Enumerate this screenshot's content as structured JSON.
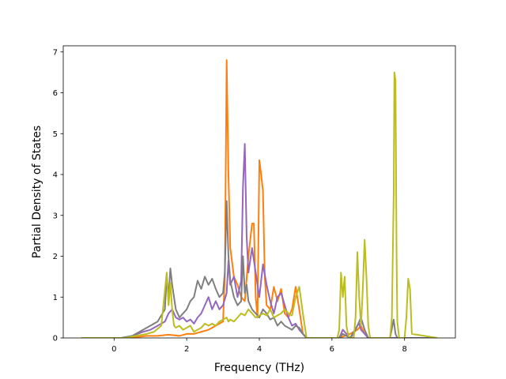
{
  "chart_data": {
    "type": "line",
    "title": "",
    "xlabel": "Frequency (THz)",
    "ylabel": "Partial Density of States",
    "xlim": [
      -1.4,
      9.4
    ],
    "ylim": [
      0,
      7.15
    ],
    "xticks": [
      0,
      2,
      4,
      6,
      8
    ],
    "yticks": [
      0,
      1,
      2,
      3,
      4,
      5,
      6,
      7
    ],
    "grid": false,
    "legend": "none",
    "series": [
      {
        "color": "#ff7f0e",
        "x": [
          -0.9,
          0.3,
          0.6,
          0.9,
          1.2,
          1.5,
          1.8,
          2.0,
          2.2,
          2.4,
          2.6,
          2.8,
          3.0,
          3.05,
          3.1,
          3.15,
          3.2,
          3.3,
          3.4,
          3.5,
          3.6,
          3.7,
          3.8,
          3.85,
          3.9,
          3.95,
          4.0,
          4.05,
          4.1,
          4.15,
          4.2,
          4.3,
          4.4,
          4.5,
          4.6,
          4.7,
          4.8,
          4.9,
          5.0,
          5.1,
          5.2,
          5.3,
          6.2,
          6.5,
          6.7,
          6.8,
          6.85,
          6.9,
          7.0,
          8.9
        ],
        "y": [
          0,
          0,
          0.02,
          0.05,
          0.05,
          0.08,
          0.05,
          0.1,
          0.1,
          0.15,
          0.2,
          0.3,
          0.4,
          1.5,
          6.8,
          4.0,
          2.2,
          1.5,
          1.3,
          1.0,
          0.9,
          2.0,
          2.8,
          2.8,
          1.0,
          0.5,
          4.35,
          4.0,
          3.6,
          1.5,
          0.8,
          0.7,
          1.25,
          0.9,
          1.2,
          0.6,
          0.5,
          0.7,
          1.25,
          0.7,
          0.1,
          0,
          0,
          0.1,
          0.2,
          0.3,
          0.2,
          0.1,
          0,
          0
        ]
      },
      {
        "color": "#9467bd",
        "x": [
          -0.9,
          0.2,
          0.5,
          0.8,
          1.0,
          1.2,
          1.4,
          1.5,
          1.6,
          1.7,
          1.8,
          1.9,
          2.0,
          2.1,
          2.2,
          2.3,
          2.4,
          2.5,
          2.6,
          2.7,
          2.8,
          2.9,
          3.0,
          3.1,
          3.15,
          3.2,
          3.3,
          3.4,
          3.5,
          3.55,
          3.6,
          3.65,
          3.7,
          3.8,
          3.9,
          4.0,
          4.1,
          4.2,
          4.3,
          4.4,
          4.5,
          4.6,
          4.7,
          4.8,
          4.9,
          5.0,
          5.1,
          5.2,
          5.3,
          6.2,
          6.3,
          6.4,
          6.5,
          6.6,
          6.7,
          6.75,
          6.8,
          6.9,
          7.0,
          8.9
        ],
        "y": [
          0,
          0,
          0.05,
          0.15,
          0.2,
          0.3,
          0.4,
          0.6,
          0.7,
          0.5,
          0.45,
          0.5,
          0.4,
          0.45,
          0.35,
          0.5,
          0.6,
          0.8,
          1.0,
          0.7,
          0.9,
          0.7,
          0.8,
          1.1,
          1.9,
          1.3,
          1.5,
          1.0,
          1.4,
          3.7,
          4.75,
          2.5,
          1.6,
          2.2,
          1.6,
          1.0,
          1.8,
          1.3,
          0.9,
          0.6,
          1.0,
          1.1,
          0.8,
          0.5,
          0.3,
          0.35,
          0.2,
          0.1,
          0,
          0,
          0.2,
          0.1,
          0,
          0.1,
          0.3,
          0.35,
          0.2,
          0.1,
          0,
          0
        ]
      },
      {
        "color": "#7f7f7f",
        "x": [
          -0.9,
          0.2,
          0.5,
          0.8,
          1.0,
          1.2,
          1.4,
          1.45,
          1.5,
          1.55,
          1.6,
          1.7,
          1.8,
          1.9,
          2.0,
          2.1,
          2.2,
          2.3,
          2.4,
          2.5,
          2.6,
          2.7,
          2.8,
          2.9,
          3.0,
          3.05,
          3.1,
          3.15,
          3.2,
          3.3,
          3.4,
          3.5,
          3.55,
          3.6,
          3.65,
          3.7,
          3.8,
          3.9,
          4.0,
          4.1,
          4.2,
          4.3,
          4.4,
          4.5,
          4.6,
          4.7,
          4.8,
          4.9,
          5.0,
          5.1,
          5.2,
          5.3,
          6.2,
          6.3,
          6.4,
          6.5,
          6.7,
          6.8,
          6.9,
          7.0,
          7.6,
          7.7,
          7.75,
          7.8,
          8.9
        ],
        "y": [
          0,
          0,
          0.05,
          0.2,
          0.3,
          0.4,
          0.7,
          1.5,
          1.0,
          1.7,
          1.3,
          0.7,
          0.5,
          0.6,
          0.7,
          0.9,
          1.0,
          1.4,
          1.2,
          1.5,
          1.3,
          1.45,
          1.2,
          1.0,
          1.1,
          1.6,
          3.35,
          2.0,
          1.4,
          1.0,
          0.8,
          0.9,
          2.0,
          1.1,
          1.3,
          0.9,
          0.7,
          0.6,
          0.5,
          0.7,
          0.6,
          0.45,
          0.5,
          0.3,
          0.4,
          0.3,
          0.25,
          0.2,
          0.3,
          0.25,
          0.1,
          0,
          0,
          0.1,
          0.05,
          0,
          0.3,
          0.5,
          0.2,
          0,
          0,
          0.45,
          0.1,
          0,
          0
        ]
      },
      {
        "color": "#bcbd22",
        "x": [
          -0.9,
          0.3,
          0.6,
          0.9,
          1.1,
          1.3,
          1.45,
          1.5,
          1.55,
          1.6,
          1.65,
          1.7,
          1.8,
          1.9,
          2.0,
          2.1,
          2.2,
          2.3,
          2.4,
          2.5,
          2.6,
          2.7,
          2.8,
          2.9,
          3.0,
          3.1,
          3.15,
          3.2,
          3.3,
          3.4,
          3.5,
          3.6,
          3.7,
          3.8,
          3.9,
          4.0,
          4.1,
          4.2,
          4.3,
          4.4,
          4.5,
          4.6,
          4.7,
          4.8,
          4.9,
          5.0,
          5.1,
          5.2,
          5.3,
          6.15,
          6.2,
          6.25,
          6.3,
          6.35,
          6.4,
          6.45,
          6.5,
          6.6,
          6.65,
          6.7,
          6.75,
          6.8,
          6.85,
          6.9,
          6.95,
          7.0,
          7.05,
          7.6,
          7.65,
          7.7,
          7.72,
          7.75,
          7.78,
          7.8,
          7.85,
          8.0,
          8.05,
          8.1,
          8.15,
          8.2,
          8.9
        ],
        "y": [
          0,
          0,
          0.05,
          0.1,
          0.15,
          0.3,
          1.6,
          0.8,
          1.35,
          0.7,
          0.3,
          0.25,
          0.3,
          0.2,
          0.25,
          0.3,
          0.15,
          0.2,
          0.25,
          0.35,
          0.3,
          0.35,
          0.3,
          0.4,
          0.45,
          0.5,
          0.4,
          0.45,
          0.4,
          0.5,
          0.6,
          0.55,
          0.7,
          0.6,
          0.5,
          0.55,
          0.6,
          0.55,
          0.7,
          0.5,
          0.55,
          0.6,
          0.7,
          0.6,
          0.55,
          1.0,
          1.25,
          0.6,
          0,
          0,
          0.2,
          1.6,
          1.0,
          1.5,
          0.3,
          0.05,
          0,
          0,
          0.5,
          2.1,
          1.0,
          0.3,
          1.2,
          2.4,
          1.5,
          0.3,
          0,
          0,
          0.5,
          3.5,
          6.5,
          6.3,
          2.0,
          0.4,
          0,
          0,
          0.5,
          1.45,
          1.2,
          0.1,
          0
        ]
      }
    ]
  }
}
